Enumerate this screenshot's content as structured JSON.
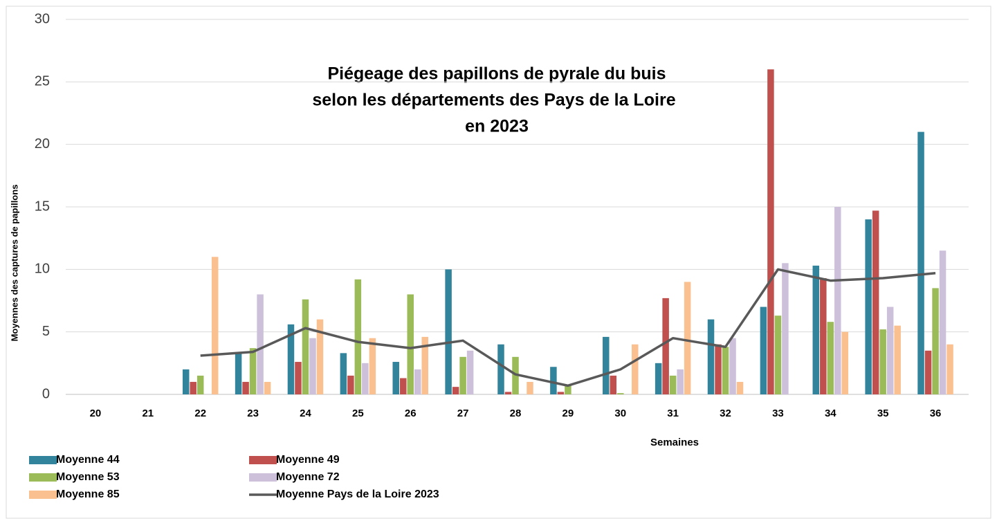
{
  "chart_data": {
    "type": "bar",
    "title": [
      "Piégeage des papillons de pyrale du buis",
      "selon les départements des Pays de la Loire",
      "en 2023"
    ],
    "x_label": "Semaines",
    "y_label": "Moyennes des captures de papillons",
    "categories": [
      "20",
      "21",
      "22",
      "23",
      "24",
      "25",
      "26",
      "27",
      "28",
      "29",
      "30",
      "31",
      "32",
      "33",
      "34",
      "35",
      "36"
    ],
    "series": [
      {
        "name": "Moyenne 44",
        "color": "#31849b",
        "type": "bar",
        "values": [
          null,
          null,
          2.0,
          3.3,
          5.6,
          3.3,
          2.6,
          10.0,
          4.0,
          2.2,
          4.6,
          2.5,
          6.0,
          7.0,
          10.3,
          14.0,
          21.0
        ]
      },
      {
        "name": "Moyenne 49",
        "color": "#c0504d",
        "type": "bar",
        "values": [
          null,
          null,
          1.0,
          1.0,
          2.6,
          1.5,
          1.3,
          0.6,
          0.2,
          0.2,
          1.5,
          7.7,
          4.0,
          26.0,
          9.3,
          14.7,
          3.5
        ]
      },
      {
        "name": "Moyenne 53",
        "color": "#9bbb59",
        "type": "bar",
        "values": [
          null,
          null,
          1.5,
          3.7,
          7.6,
          9.2,
          8.0,
          3.0,
          3.0,
          0.8,
          0.1,
          1.5,
          3.8,
          6.3,
          5.8,
          5.2,
          8.5
        ]
      },
      {
        "name": "Moyenne 72",
        "color": "#ccc0da",
        "type": "bar",
        "values": [
          null,
          null,
          null,
          8.0,
          4.5,
          2.5,
          2.0,
          3.5,
          null,
          null,
          null,
          2.0,
          4.5,
          10.5,
          15.0,
          7.0,
          11.5
        ]
      },
      {
        "name": "Moyenne 85",
        "color": "#fac090",
        "type": "bar",
        "values": [
          null,
          null,
          11.0,
          1.0,
          6.0,
          4.5,
          4.6,
          null,
          1.0,
          null,
          4.0,
          9.0,
          1.0,
          null,
          5.0,
          5.5,
          4.0
        ]
      },
      {
        "name": "Moyenne Pays de la Loire 2023",
        "color": "#595959",
        "type": "line",
        "values": [
          null,
          null,
          3.1,
          3.4,
          5.3,
          4.2,
          3.7,
          4.3,
          1.6,
          0.7,
          2.0,
          4.5,
          3.8,
          10.0,
          9.1,
          9.3,
          9.7
        ]
      }
    ],
    "ylim": [
      0,
      30
    ],
    "yticks": [
      0,
      5,
      10,
      15,
      20,
      25,
      30
    ],
    "grid": true
  }
}
